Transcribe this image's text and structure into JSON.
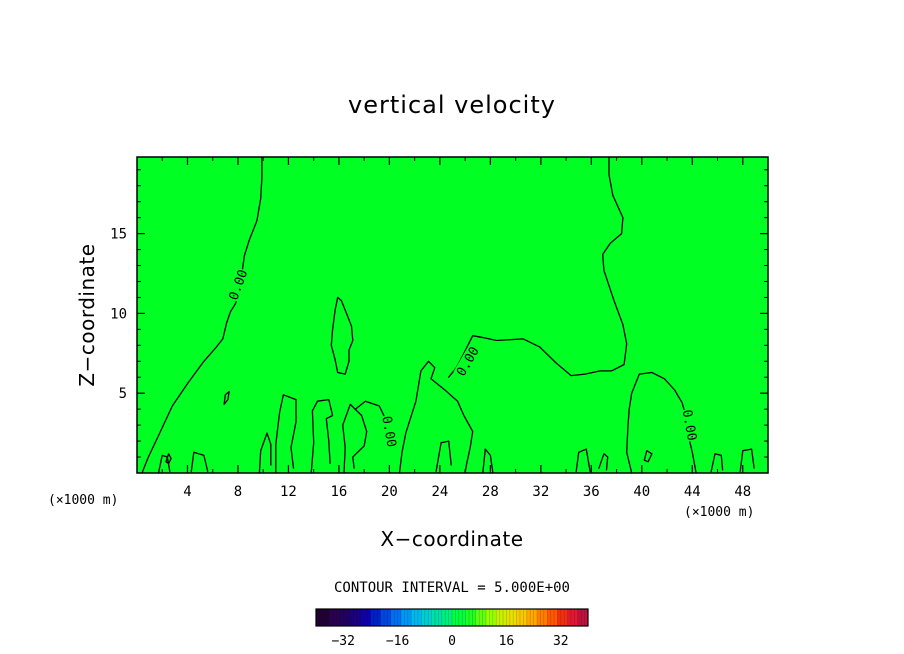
{
  "chart_data": {
    "type": "contour",
    "title": "vertical velocity",
    "xlabel": "X−coordinate",
    "ylabel": "Z−coordinate",
    "x_unit_left": "(×1000 m)",
    "x_unit_right": "(×1000 m)",
    "xlim": [
      0,
      50
    ],
    "ylim": [
      0,
      19.8
    ],
    "x_ticks": [
      {
        "value": 4,
        "label": "4"
      },
      {
        "value": 8,
        "label": "8"
      },
      {
        "value": 12,
        "label": "12"
      },
      {
        "value": 16,
        "label": "16"
      },
      {
        "value": 20,
        "label": "20"
      },
      {
        "value": 24,
        "label": "24"
      },
      {
        "value": 28,
        "label": "28"
      },
      {
        "value": 32,
        "label": "32"
      },
      {
        "value": 36,
        "label": "36"
      },
      {
        "value": 40,
        "label": "40"
      },
      {
        "value": 44,
        "label": "44"
      },
      {
        "value": 48,
        "label": "48"
      }
    ],
    "y_ticks": [
      {
        "value": 5,
        "label": "5"
      },
      {
        "value": 10,
        "label": "10"
      },
      {
        "value": 15,
        "label": "15"
      }
    ],
    "field_background": "#00ff22",
    "contour_interval_text": "CONTOUR INTERVAL = 5.000E+00",
    "contour_line_labels": [
      {
        "text": "0.00",
        "x": 8.0,
        "y": 11.8,
        "angle": -70
      },
      {
        "text": "0.00",
        "x": 26.2,
        "y": 7.0,
        "angle": -60
      },
      {
        "text": "0.00",
        "x": 20.0,
        "y": 2.6,
        "angle": 80
      },
      {
        "text": "0.00",
        "x": 43.8,
        "y": 3.0,
        "angle": 80
      }
    ],
    "zero_contours": [
      [
        [
          0.4,
          0.0
        ],
        [
          0.9,
          1.0
        ],
        [
          1.8,
          2.5
        ],
        [
          2.8,
          4.2
        ],
        [
          4.0,
          5.6
        ],
        [
          5.3,
          7.0
        ],
        [
          6.3,
          7.9
        ],
        [
          6.8,
          8.4
        ],
        [
          7.1,
          9.4
        ],
        [
          7.4,
          10.1
        ],
        [
          7.8,
          10.6
        ],
        [
          8.1,
          11.3
        ],
        [
          8.3,
          12.4
        ],
        [
          8.5,
          13.6
        ],
        [
          8.9,
          14.6
        ],
        [
          9.5,
          15.8
        ],
        [
          9.8,
          17.2
        ],
        [
          9.9,
          18.5
        ],
        [
          9.9,
          19.8
        ]
      ],
      [
        [
          15.7,
          10.2
        ],
        [
          15.9,
          11.0
        ],
        [
          16.2,
          10.8
        ],
        [
          16.6,
          10.0
        ],
        [
          17.0,
          9.2
        ],
        [
          17.1,
          8.3
        ],
        [
          16.8,
          7.7
        ],
        [
          16.8,
          7.0
        ],
        [
          16.5,
          6.2
        ],
        [
          15.9,
          6.3
        ],
        [
          15.7,
          7.1
        ],
        [
          15.4,
          8.0
        ],
        [
          15.5,
          9.0
        ],
        [
          15.7,
          10.2
        ]
      ],
      [
        [
          20.8,
          0.0
        ],
        [
          21.0,
          1.3
        ],
        [
          21.3,
          2.5
        ],
        [
          22.1,
          4.5
        ],
        [
          22.5,
          6.4
        ],
        [
          23.1,
          7.0
        ],
        [
          23.6,
          6.6
        ],
        [
          23.3,
          5.9
        ],
        [
          24.4,
          5.2
        ],
        [
          25.4,
          4.5
        ],
        [
          25.9,
          3.6
        ],
        [
          26.6,
          2.6
        ],
        [
          26.4,
          1.6
        ],
        [
          26.1,
          0.5
        ],
        [
          26.0,
          0.0
        ]
      ],
      [
        [
          24.7,
          6.0
        ],
        [
          25.3,
          6.6
        ],
        [
          25.9,
          7.5
        ],
        [
          26.6,
          8.6
        ],
        [
          27.3,
          8.5
        ],
        [
          28.5,
          8.3
        ],
        [
          30.6,
          8.4
        ],
        [
          31.9,
          7.9
        ],
        [
          33.2,
          6.9
        ],
        [
          34.4,
          6.1
        ],
        [
          35.5,
          6.2
        ],
        [
          36.7,
          6.4
        ],
        [
          37.6,
          6.4
        ],
        [
          38.6,
          6.8
        ],
        [
          38.8,
          8.1
        ],
        [
          38.5,
          9.3
        ],
        [
          37.8,
          10.8
        ],
        [
          37.0,
          12.7
        ],
        [
          36.9,
          13.7
        ],
        [
          37.5,
          14.4
        ],
        [
          38.4,
          15.0
        ],
        [
          38.5,
          16.0
        ],
        [
          37.7,
          17.4
        ],
        [
          37.4,
          18.7
        ],
        [
          37.4,
          19.8
        ]
      ],
      [
        [
          39.2,
          0.0
        ],
        [
          38.8,
          1.3
        ],
        [
          38.9,
          2.9
        ],
        [
          39.0,
          4.0
        ],
        [
          39.2,
          5.0
        ],
        [
          39.8,
          6.2
        ],
        [
          40.8,
          6.3
        ],
        [
          41.8,
          5.9
        ],
        [
          42.6,
          5.2
        ],
        [
          43.2,
          4.4
        ],
        [
          43.5,
          3.5
        ],
        [
          43.7,
          2.3
        ],
        [
          44.0,
          1.3
        ],
        [
          44.3,
          0.0
        ]
      ],
      [
        [
          6.9,
          4.3
        ],
        [
          7.0,
          4.9
        ],
        [
          7.3,
          5.1
        ],
        [
          7.2,
          4.6
        ],
        [
          6.9,
          4.3
        ]
      ],
      [
        [
          9.7,
          0.0
        ],
        [
          9.8,
          1.4
        ],
        [
          10.3,
          2.5
        ],
        [
          10.6,
          1.8
        ],
        [
          10.6,
          0.5
        ]
      ],
      [
        [
          11.0,
          0.0
        ],
        [
          11.0,
          1.8
        ],
        [
          11.3,
          3.8
        ],
        [
          11.6,
          4.9
        ],
        [
          12.6,
          4.6
        ],
        [
          12.6,
          3.2
        ],
        [
          12.2,
          1.6
        ],
        [
          12.4,
          0.3
        ]
      ],
      [
        [
          13.8,
          0.0
        ],
        [
          14.0,
          1.9
        ],
        [
          13.9,
          3.9
        ],
        [
          14.3,
          4.5
        ],
        [
          15.2,
          4.6
        ],
        [
          15.5,
          3.6
        ],
        [
          15.0,
          3.4
        ],
        [
          15.2,
          2.0
        ],
        [
          15.3,
          0.6
        ]
      ],
      [
        [
          16.4,
          0.0
        ],
        [
          16.5,
          1.6
        ],
        [
          16.3,
          3.0
        ],
        [
          16.9,
          4.3
        ],
        [
          17.8,
          3.6
        ],
        [
          18.2,
          2.6
        ],
        [
          18.0,
          1.7
        ],
        [
          17.1,
          1.0
        ],
        [
          17.2,
          0.3
        ]
      ],
      [
        [
          17.3,
          4.0
        ],
        [
          18.1,
          4.5
        ],
        [
          19.2,
          4.2
        ],
        [
          19.8,
          3.2
        ],
        [
          19.6,
          2.4
        ]
      ],
      [
        [
          1.7,
          0.0
        ],
        [
          2.0,
          1.1
        ],
        [
          2.4,
          1.0
        ],
        [
          2.6,
          0.1
        ]
      ],
      [
        [
          4.3,
          0.1
        ],
        [
          4.5,
          1.3
        ],
        [
          5.3,
          1.1
        ],
        [
          5.6,
          0.1
        ]
      ],
      [
        [
          23.7,
          0.1
        ],
        [
          24.1,
          1.9
        ],
        [
          24.7,
          2.0
        ],
        [
          24.9,
          0.5
        ]
      ],
      [
        [
          27.4,
          0.0
        ],
        [
          27.6,
          1.5
        ],
        [
          28.0,
          1.1
        ],
        [
          28.2,
          0.0
        ]
      ],
      [
        [
          34.8,
          0.1
        ],
        [
          35.0,
          1.3
        ],
        [
          35.6,
          1.5
        ],
        [
          35.9,
          0.1
        ]
      ],
      [
        [
          36.6,
          0.3
        ],
        [
          37.0,
          1.2
        ],
        [
          37.3,
          1.0
        ],
        [
          37.2,
          0.2
        ]
      ],
      [
        [
          45.5,
          0.1
        ],
        [
          45.8,
          1.2
        ],
        [
          46.3,
          1.1
        ],
        [
          46.4,
          0.2
        ]
      ],
      [
        [
          47.8,
          0.1
        ],
        [
          48.0,
          1.4
        ],
        [
          48.7,
          1.5
        ],
        [
          48.9,
          0.3
        ]
      ],
      [
        [
          40.2,
          0.8
        ],
        [
          40.4,
          1.4
        ],
        [
          40.8,
          1.2
        ],
        [
          40.5,
          0.7
        ],
        [
          40.2,
          0.8
        ]
      ],
      [
        [
          2.3,
          0.7
        ],
        [
          2.5,
          1.2
        ],
        [
          2.7,
          0.9
        ],
        [
          2.5,
          0.6
        ],
        [
          2.3,
          0.7
        ]
      ]
    ],
    "colorbar": {
      "min": -40,
      "max": 40,
      "ticks": [
        {
          "value": -32,
          "label": "−32"
        },
        {
          "value": -16,
          "label": "−16"
        },
        {
          "value": 0,
          "label": "0"
        },
        {
          "value": 16,
          "label": "16"
        },
        {
          "value": 32,
          "label": "32"
        }
      ],
      "colors": [
        "#220033",
        "#2a0050",
        "#20005e",
        "#1a0080",
        "#1000a8",
        "#0020c8",
        "#0048e0",
        "#0070f0",
        "#0098f8",
        "#00b8f0",
        "#00d0d0",
        "#00e0a8",
        "#00f080",
        "#00ff40",
        "#20ff20",
        "#60ff10",
        "#98ff00",
        "#c8f000",
        "#e8e000",
        "#f8c800",
        "#ffa800",
        "#ff8000",
        "#ff5800",
        "#f03010",
        "#e01830",
        "#c01040"
      ]
    }
  }
}
